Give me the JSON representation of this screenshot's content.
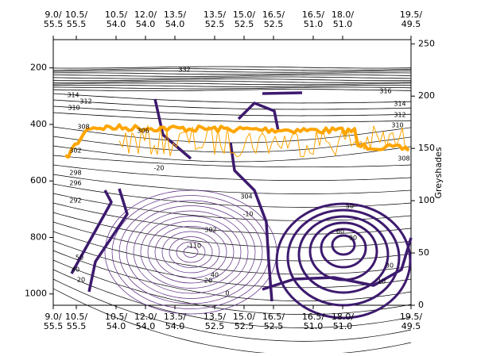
{
  "chart_data": {
    "type": "contour",
    "x_labels": [
      [
        "9.0/",
        "55.5"
      ],
      [
        "10.5/",
        "55.5"
      ],
      [
        "10.5/",
        "54.0"
      ],
      [
        "12.0/",
        "54.0"
      ],
      [
        "13.5/",
        "54.0"
      ],
      [
        "13.5/",
        "52.5"
      ],
      [
        "15.0/",
        "52.5"
      ],
      [
        "16.5/",
        "52.5"
      ],
      [
        "16.5/",
        "51.0"
      ],
      [
        "18.0/",
        "51.0"
      ],
      [
        "19.5/",
        "49.5"
      ]
    ],
    "ylim": [
      1040,
      100
    ],
    "yticks": [
      200,
      400,
      600,
      800,
      1000
    ],
    "y2label": "Greyshades",
    "y2lim": [
      0,
      254
    ],
    "y2ticks": [
      0,
      50,
      100,
      150,
      200,
      250
    ],
    "contour_labels": [
      "332",
      "314",
      "312",
      "310",
      "308",
      "306",
      "302",
      "298",
      "296",
      "292",
      "316",
      "314",
      "312",
      "310",
      "308",
      "304",
      "302",
      "-10",
      "-110",
      "-20",
      "10",
      "50",
      "30",
      "60",
      "90",
      "50",
      "40",
      "20",
      "20",
      "40",
      "0"
    ]
  }
}
